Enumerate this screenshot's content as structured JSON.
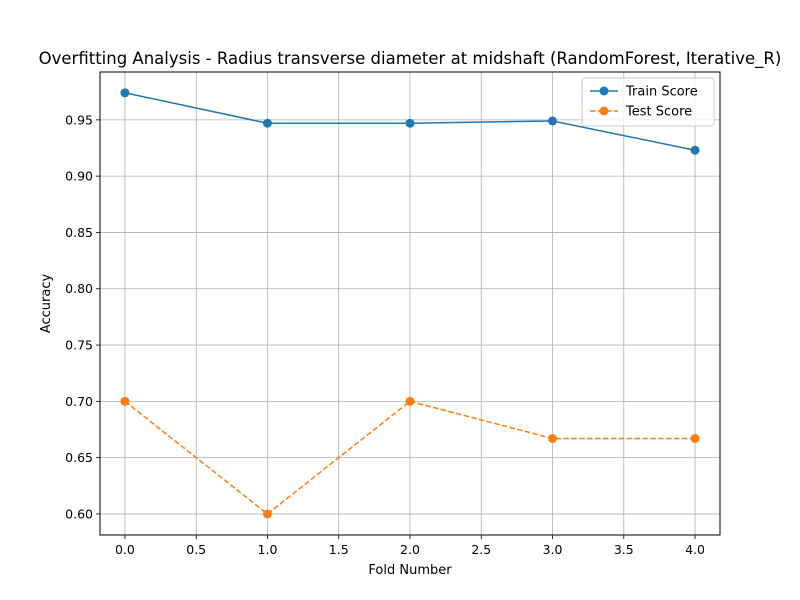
{
  "chart_data": {
    "type": "line",
    "title": "Overfitting Analysis - Radius transverse diameter at midshaft (RandomForest, Iterative_R)",
    "xlabel": "Fold Number",
    "ylabel": "Accuracy",
    "x": [
      0,
      1,
      2,
      3,
      4
    ],
    "xlim": [
      -0.175,
      4.175
    ],
    "ylim": [
      0.5813,
      0.9925
    ],
    "xticks": [
      0.0,
      0.5,
      1.0,
      1.5,
      2.0,
      2.5,
      3.0,
      3.5,
      4.0
    ],
    "xtick_labels": [
      "0.0",
      "0.5",
      "1.0",
      "1.5",
      "2.0",
      "2.5",
      "3.0",
      "3.5",
      "4.0"
    ],
    "yticks": [
      0.6,
      0.65,
      0.7,
      0.75,
      0.8,
      0.85,
      0.9,
      0.95
    ],
    "ytick_labels": [
      "0.60",
      "0.65",
      "0.70",
      "0.75",
      "0.80",
      "0.85",
      "0.90",
      "0.95"
    ],
    "grid": true,
    "legend_position": "top-right",
    "series": [
      {
        "name": "Train Score",
        "values": [
          0.974,
          0.947,
          0.947,
          0.949,
          0.923
        ],
        "color": "#1f77b4",
        "linestyle": "solid",
        "marker": "circle"
      },
      {
        "name": "Test Score",
        "values": [
          0.7,
          0.6,
          0.7,
          0.667,
          0.667
        ],
        "color": "#ff7f0e",
        "linestyle": "dashed",
        "marker": "circle"
      }
    ]
  }
}
